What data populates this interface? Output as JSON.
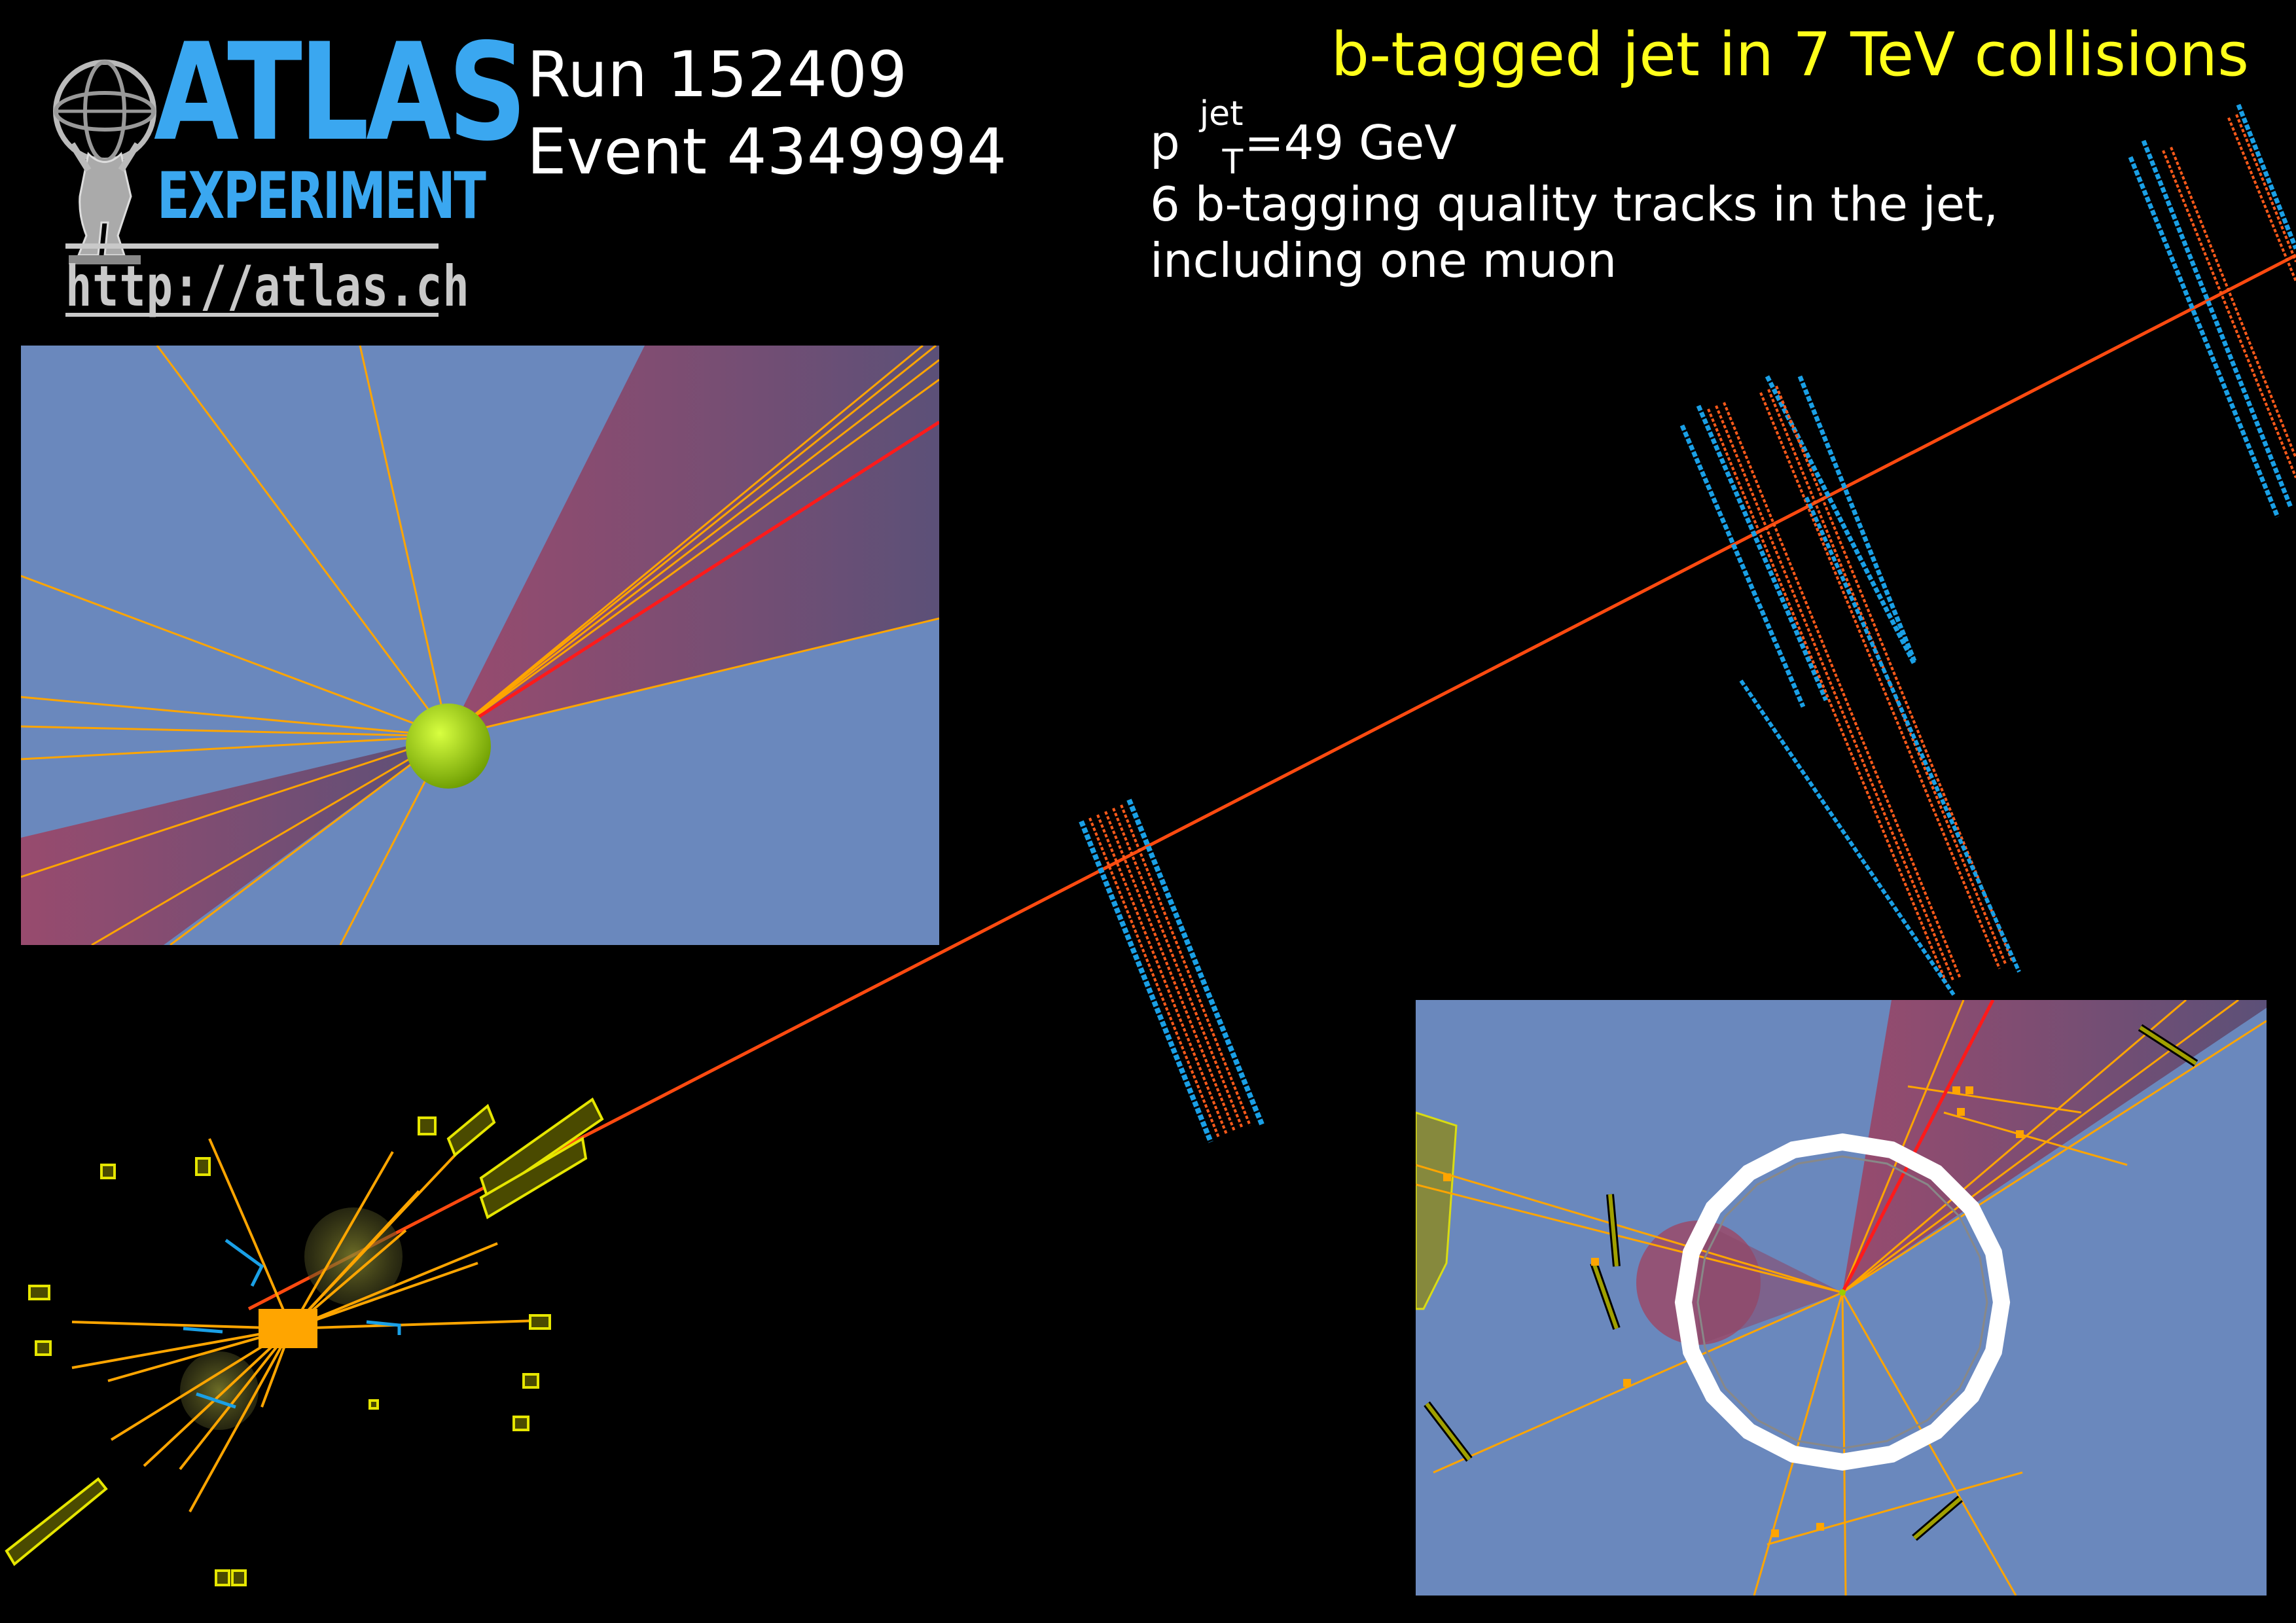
{
  "logo": {
    "word1": "ATLAS",
    "word2": "EXPERIMENT",
    "url": "http://atlas.ch"
  },
  "run": {
    "run_line": "Run 152409",
    "event_line": "Event 4349994"
  },
  "title": "b-tagged jet in 7 TeV collisions",
  "info": {
    "pt_p": "p",
    "pt_sup": "jet",
    "pt_sub": "T",
    "pt_value": "=49 GeV",
    "line2": "6 b-tagging quality  tracks in the jet,",
    "line3": "including one muon"
  },
  "colors": {
    "background": "#000000",
    "panel_blue": "#6a88bd",
    "jet_cone": "#7a4a6a",
    "track_orange": "#ffa500",
    "muon_red": "#ff3a1a",
    "muon_chamber_orange": "#ff5a1a",
    "muon_chamber_blue": "#1aa0e6",
    "calorimeter_yellow": "#e6e600",
    "vertex_green": "#9acd00",
    "title_yellow": "#ffff1a"
  },
  "icons": {
    "logo_emblem": "atlas-figure-globe-icon"
  }
}
